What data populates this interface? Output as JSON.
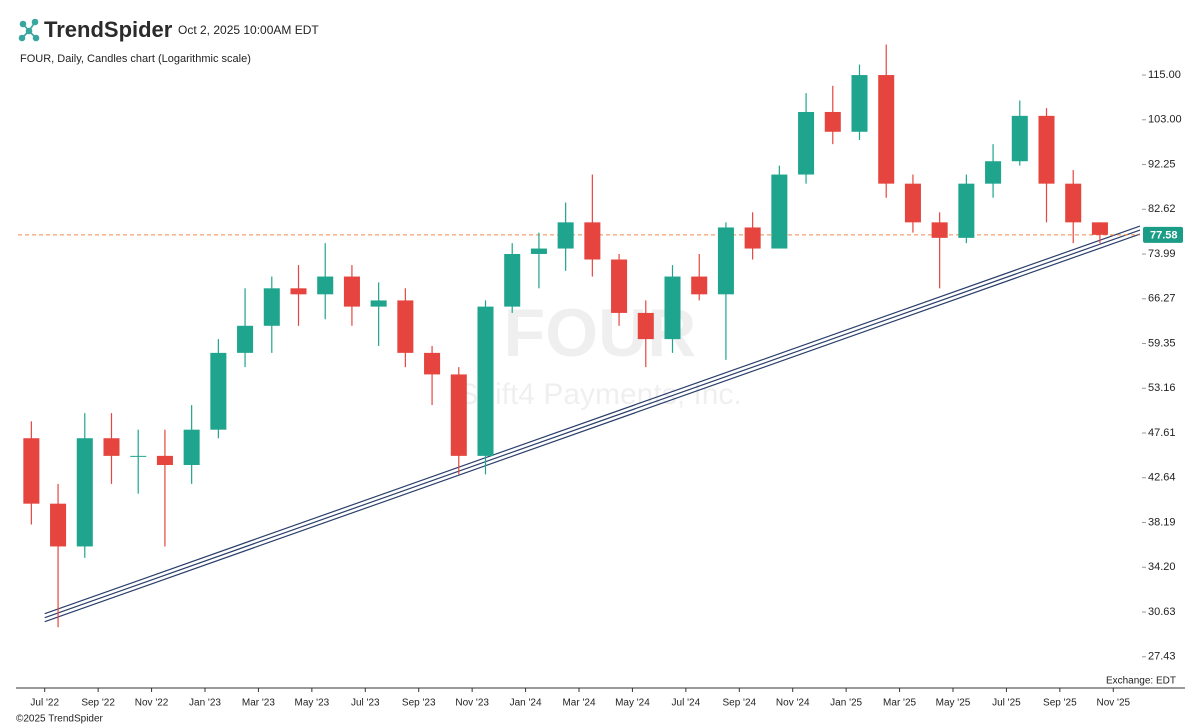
{
  "header": {
    "brand": "TrendSpider",
    "timestamp": "Oct 2, 2025 10:00AM EDT"
  },
  "chart_data": {
    "type": "candlestick",
    "title": "FOUR, Daily, Candles chart (Logarithmic scale)",
    "watermark": "FOUR",
    "watermark_subtitle": "Shift4 Payments, Inc.",
    "log_scale": true,
    "up_color": "#1fa58e",
    "down_color": "#e5453e",
    "x": [
      "2022-06",
      "2022-07",
      "2022-08",
      "2022-09",
      "2022-10",
      "2022-11",
      "2022-12",
      "2023-01",
      "2023-02",
      "2023-03",
      "2023-04",
      "2023-05",
      "2023-06",
      "2023-07",
      "2023-08",
      "2023-09",
      "2023-10",
      "2023-11",
      "2023-12",
      "2024-01",
      "2024-02",
      "2024-03",
      "2024-04",
      "2024-05",
      "2024-06",
      "2024-07",
      "2024-08",
      "2024-09",
      "2024-10",
      "2024-11",
      "2024-12",
      "2025-01",
      "2025-02",
      "2025-03",
      "2025-04",
      "2025-05",
      "2025-06",
      "2025-07",
      "2025-08",
      "2025-09",
      "2025-10"
    ],
    "open": [
      47,
      40,
      36,
      47,
      45,
      45,
      44,
      48,
      58,
      62,
      68,
      67,
      70,
      65,
      66,
      58,
      55,
      45,
      65,
      74,
      75,
      80,
      73,
      64,
      60,
      70,
      67,
      79,
      75,
      90,
      105,
      100,
      115,
      88,
      80,
      77,
      88,
      93,
      104,
      88,
      80
    ],
    "high": [
      49,
      42,
      50,
      50,
      48,
      48,
      51,
      60,
      68,
      70,
      72,
      76,
      72,
      69,
      68,
      59,
      56,
      66,
      76,
      78,
      84,
      90,
      74,
      66,
      72,
      74,
      80,
      82,
      92,
      110,
      112,
      118,
      124,
      90,
      82,
      90,
      97,
      108,
      106,
      91,
      80
    ],
    "low": [
      38,
      29.5,
      35,
      42,
      41,
      36,
      42,
      47,
      56,
      58,
      62,
      63,
      62,
      59,
      56,
      51,
      43,
      43,
      64,
      68,
      71,
      70,
      62,
      56,
      58,
      66,
      57,
      73,
      75,
      88,
      97,
      98,
      85,
      78,
      68,
      76,
      85,
      92,
      80,
      76,
      76
    ],
    "close": [
      40,
      36,
      47,
      45,
      45,
      44,
      48,
      58,
      62,
      68,
      67,
      70,
      65,
      66,
      58,
      55,
      45,
      65,
      74,
      75,
      80,
      73,
      64,
      60,
      70,
      67,
      79,
      75,
      90,
      105,
      100,
      115,
      88,
      80,
      77,
      88,
      93,
      104,
      88,
      80,
      77.58
    ],
    "xlim": [
      "2022-06",
      "2025-12"
    ],
    "xticks": [
      {
        "value": "2022-07",
        "label": "Jul '22"
      },
      {
        "value": "2022-09",
        "label": "Sep '22"
      },
      {
        "value": "2022-11",
        "label": "Nov '22"
      },
      {
        "value": "2023-01",
        "label": "Jan '23"
      },
      {
        "value": "2023-03",
        "label": "Mar '23"
      },
      {
        "value": "2023-05",
        "label": "May '23"
      },
      {
        "value": "2023-07",
        "label": "Jul '23"
      },
      {
        "value": "2023-09",
        "label": "Sep '23"
      },
      {
        "value": "2023-11",
        "label": "Nov '23"
      },
      {
        "value": "2024-01",
        "label": "Jan '24"
      },
      {
        "value": "2024-03",
        "label": "Mar '24"
      },
      {
        "value": "2024-05",
        "label": "May '24"
      },
      {
        "value": "2024-07",
        "label": "Jul '24"
      },
      {
        "value": "2024-09",
        "label": "Sep '24"
      },
      {
        "value": "2024-11",
        "label": "Nov '24"
      },
      {
        "value": "2025-01",
        "label": "Jan '25"
      },
      {
        "value": "2025-03",
        "label": "Mar '25"
      },
      {
        "value": "2025-05",
        "label": "May '25"
      },
      {
        "value": "2025-07",
        "label": "Jul '25"
      },
      {
        "value": "2025-09",
        "label": "Sep '25"
      },
      {
        "value": "2025-11",
        "label": "Nov '25"
      }
    ],
    "ylim": [
      25.4,
      128.5
    ],
    "yticks": [
      {
        "value": 115,
        "label": "115.00"
      },
      {
        "value": 103,
        "label": "103.00"
      },
      92.25,
      82.62,
      73.99,
      66.27,
      59.35,
      53.16,
      47.61,
      42.64,
      38.19,
      {
        "value": 34.2,
        "label": "34.20"
      },
      30.63,
      27.43
    ],
    "last_price": 77.58,
    "last_price_color": "#f08a4b",
    "last_price_box_color": "#1a9c86",
    "trendline": {
      "x": [
        "2022-07",
        "2025-12"
      ],
      "values": [
        30.2,
        78.5
      ],
      "color": "#2a3f6b"
    },
    "exchange_note": "Exchange: EDT"
  },
  "footer": {
    "copyright": "©2025 TrendSpider"
  }
}
